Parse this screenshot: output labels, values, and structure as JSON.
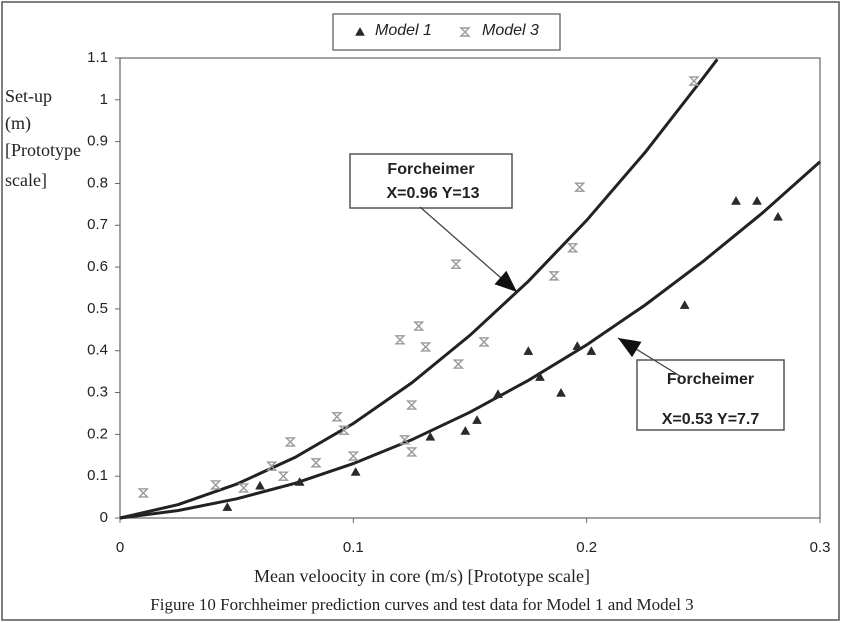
{
  "chart_data": {
    "type": "scatter",
    "y_label": [
      "Set-up",
      "(m)",
      "[Prototype",
      "scale]"
    ],
    "x_label": "Mean veloocity in core (m/s) [Prototype scale]",
    "caption": "Figure 10 Forchheimer prediction curves and test data for Model 1 and Model 3",
    "xlim": [
      0,
      0.3
    ],
    "ylim": [
      0,
      1.1
    ],
    "xticks": [
      0,
      0.1,
      0.2,
      0.3
    ],
    "yticks": [
      0,
      0.1,
      0.2,
      0.3,
      0.4,
      0.5,
      0.6,
      0.7,
      0.8,
      0.9,
      1,
      1.1
    ],
    "legend": "top",
    "series": [
      {
        "name": "Model 1",
        "color": "#2a2a2a",
        "marker": "triangle",
        "x": [
          0.046,
          0.06,
          0.077,
          0.101,
          0.133,
          0.148,
          0.153,
          0.162,
          0.175,
          0.18,
          0.189,
          0.196,
          0.202,
          0.242,
          0.264,
          0.273,
          0.282
        ],
        "values": [
          0.026,
          0.077,
          0.086,
          0.11,
          0.194,
          0.208,
          0.234,
          0.296,
          0.399,
          0.337,
          0.299,
          0.411,
          0.399,
          0.509,
          0.758,
          0.758,
          0.72
        ]
      },
      {
        "name": "Model 3",
        "color": "#9a9a9a",
        "marker": "asterisk",
        "x": [
          0.01,
          0.041,
          0.053,
          0.065,
          0.07,
          0.073,
          0.084,
          0.093,
          0.096,
          0.1,
          0.12,
          0.122,
          0.125,
          0.125,
          0.128,
          0.131,
          0.144,
          0.145,
          0.156,
          0.186,
          0.194,
          0.197,
          0.246
        ],
        "values": [
          0.06,
          0.079,
          0.072,
          0.124,
          0.1,
          0.182,
          0.132,
          0.242,
          0.21,
          0.148,
          0.426,
          0.187,
          0.27,
          0.158,
          0.459,
          0.409,
          0.607,
          0.368,
          0.421,
          0.579,
          0.646,
          0.791,
          1.045
        ]
      }
    ],
    "curves": [
      {
        "color": "#222222",
        "x": [
          0,
          0.025,
          0.05,
          0.075,
          0.1,
          0.125,
          0.15,
          0.175,
          0.2,
          0.225,
          0.25,
          0.256
        ],
        "values": [
          0,
          0.032,
          0.081,
          0.145,
          0.226,
          0.323,
          0.437,
          0.566,
          0.712,
          0.874,
          1.053,
          1.097
        ]
      },
      {
        "color": "#222222",
        "x": [
          0,
          0.025,
          0.05,
          0.075,
          0.1,
          0.125,
          0.15,
          0.175,
          0.2,
          0.225,
          0.25,
          0.275,
          0.3
        ],
        "values": [
          0,
          0.018,
          0.046,
          0.083,
          0.13,
          0.187,
          0.253,
          0.329,
          0.414,
          0.509,
          0.614,
          0.728,
          0.852
        ]
      }
    ],
    "annotations": [
      {
        "lines": [
          "Forcheimer",
          "X=0.96 Y=13"
        ]
      },
      {
        "lines": [
          "Forcheimer",
          "X=0.53 Y=7.7"
        ]
      }
    ]
  }
}
